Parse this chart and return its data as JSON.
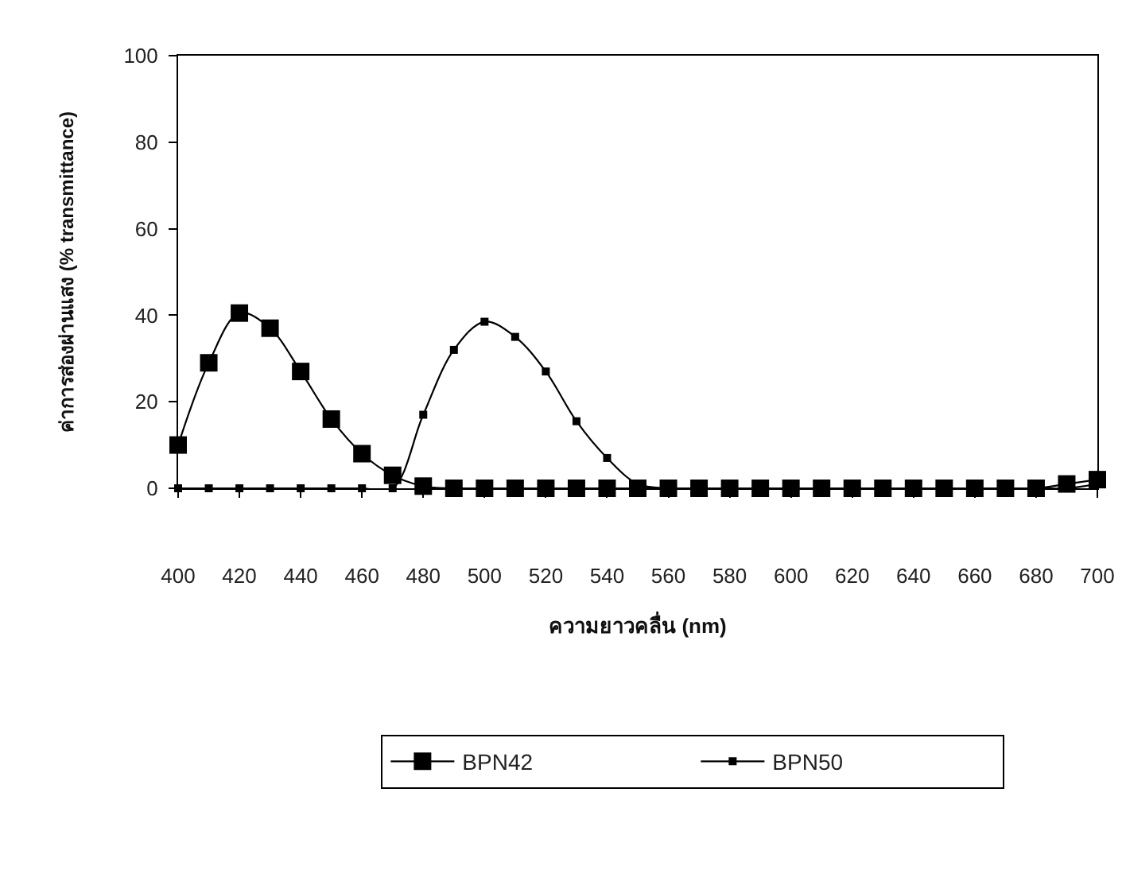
{
  "chart_data": {
    "type": "line",
    "xlabel": "ความยาวคลื่น (nm)",
    "ylabel": "ค่าการส่องผ่านแสง (% transmittance)",
    "x": [
      400,
      410,
      420,
      430,
      440,
      450,
      460,
      470,
      480,
      490,
      500,
      510,
      520,
      530,
      540,
      550,
      560,
      570,
      580,
      590,
      600,
      610,
      620,
      630,
      640,
      650,
      660,
      670,
      680,
      690,
      700
    ],
    "series": [
      {
        "name": "BPN42",
        "color": "#000000",
        "values": [
          10,
          29,
          40.5,
          37,
          27,
          16,
          8,
          3,
          0.5,
          0,
          0,
          0,
          0,
          0,
          0,
          0,
          0,
          0,
          0,
          0,
          0,
          0,
          0,
          0,
          0,
          0,
          0,
          0,
          0,
          1,
          2
        ]
      },
      {
        "name": "BPN50",
        "color": "#000000",
        "values": [
          0,
          0,
          0,
          0,
          0,
          0,
          0,
          0,
          17,
          32,
          38.5,
          35,
          27,
          15.5,
          7,
          1,
          0,
          0,
          0,
          0,
          0,
          0,
          0,
          0,
          0,
          0,
          0,
          0,
          0,
          0,
          1
        ]
      }
    ],
    "xlim": [
      400,
      700
    ],
    "ylim": [
      0,
      100
    ],
    "xticks": [
      400,
      420,
      440,
      460,
      480,
      500,
      520,
      540,
      560,
      580,
      600,
      620,
      640,
      660,
      680,
      700
    ],
    "yticks": [
      0,
      20,
      40,
      60,
      80,
      100
    ],
    "marker": "square",
    "legend": "bottom"
  }
}
